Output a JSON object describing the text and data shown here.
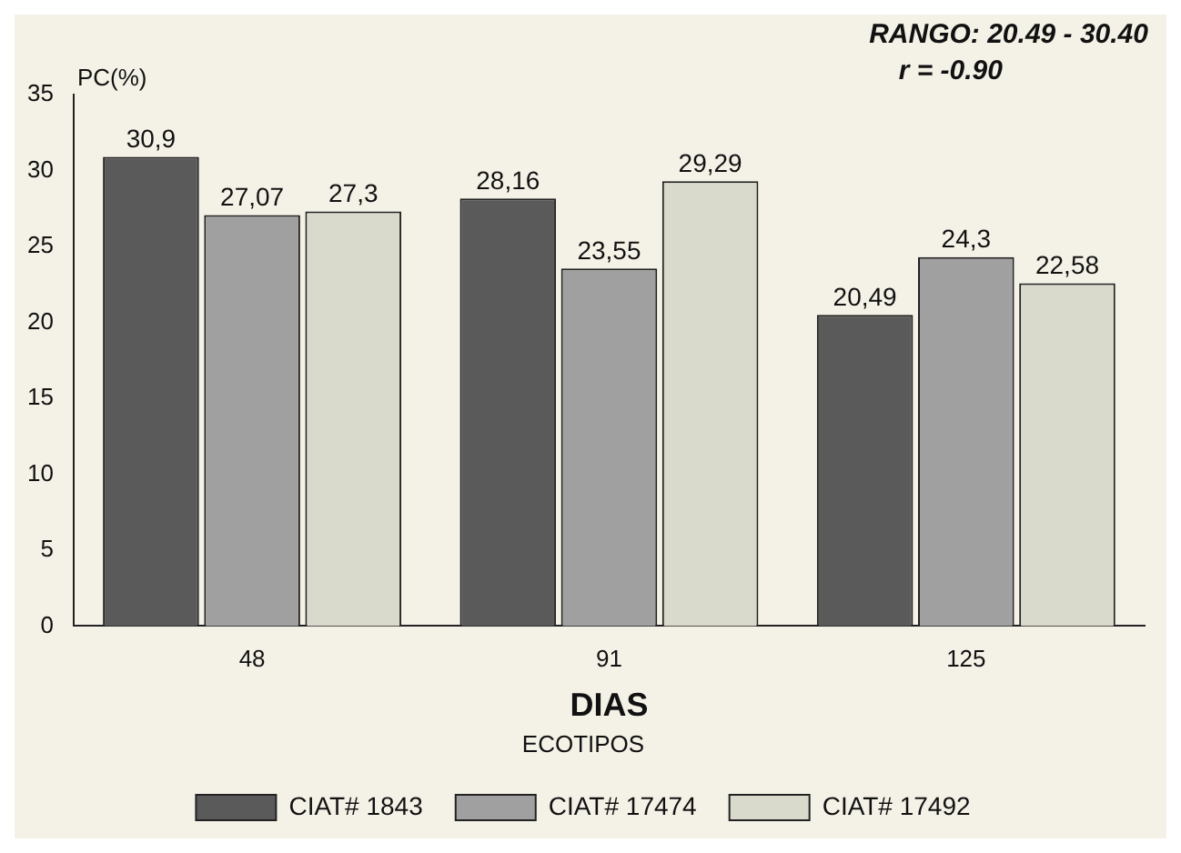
{
  "chart_data": {
    "type": "bar",
    "xlabel": "DIAS",
    "ylabel": "PC(%)",
    "legend_title": "ECOTIPOS",
    "categories": [
      "48",
      "91",
      "125"
    ],
    "series": [
      {
        "name": "CIAT# 1843",
        "color": "#5a5a5a",
        "values": [
          30.9,
          28.16,
          20.49
        ],
        "value_labels": [
          "30,9",
          "28,16",
          "20,49"
        ]
      },
      {
        "name": "CIAT# 17474",
        "color": "#a0a0a0",
        "values": [
          27.07,
          23.55,
          24.3
        ],
        "value_labels": [
          "27,07",
          "23,55",
          "24,3"
        ]
      },
      {
        "name": "CIAT# 17492",
        "color": "#d9d9cc",
        "values": [
          27.3,
          29.29,
          22.58
        ],
        "value_labels": [
          "27,3",
          "29,29",
          "22,58"
        ]
      }
    ],
    "ylim": [
      0,
      35
    ],
    "yticks": [
      0,
      5,
      10,
      15,
      20,
      25,
      30,
      35
    ],
    "legend": "bottom",
    "annotations": [
      "RANGO: 20.49 - 30.40",
      "r = -0.90"
    ]
  }
}
